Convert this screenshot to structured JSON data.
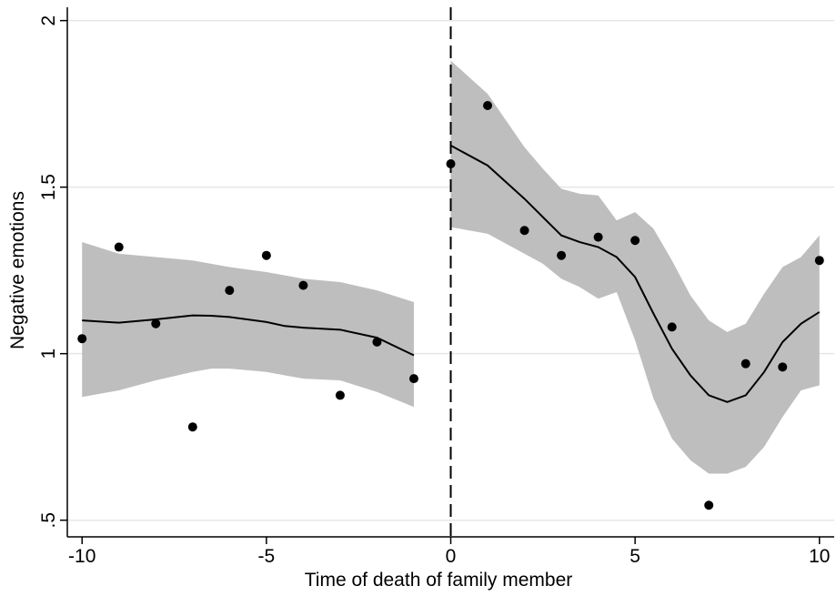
{
  "chart_data": {
    "type": "scatter",
    "title": "",
    "xlabel": "Time of death of family member",
    "ylabel": "Negative emotions",
    "xlim": [
      -10.4,
      10.4
    ],
    "ylim": [
      0.45,
      2.04
    ],
    "grid": "horizontal",
    "x_ticks": [
      -10,
      -5,
      0,
      5,
      10
    ],
    "x_tick_labels": [
      "-10",
      "-5",
      "0",
      "5",
      "10"
    ],
    "y_ticks": [
      0.5,
      1,
      1.5,
      2
    ],
    "y_tick_labels": [
      ".5",
      "1",
      "1.5",
      "2"
    ],
    "vertical_reference_line": {
      "x": 0,
      "style": "dashed"
    },
    "colors": {
      "points": "#000000",
      "fit_line": "#000000",
      "confidence_band": "#bebebe",
      "grid": "#e6e6e6"
    },
    "scatter_points": [
      {
        "x": -10,
        "y": 1.045
      },
      {
        "x": -9,
        "y": 1.32
      },
      {
        "x": -8,
        "y": 1.09
      },
      {
        "x": -7,
        "y": 0.78
      },
      {
        "x": -6,
        "y": 1.19
      },
      {
        "x": -5,
        "y": 1.295
      },
      {
        "x": -4,
        "y": 1.205
      },
      {
        "x": -3,
        "y": 0.875
      },
      {
        "x": -2,
        "y": 1.035
      },
      {
        "x": -1,
        "y": 0.925
      },
      {
        "x": 0,
        "y": 1.57
      },
      {
        "x": 1,
        "y": 1.745
      },
      {
        "x": 2,
        "y": 1.37
      },
      {
        "x": 3,
        "y": 1.295
      },
      {
        "x": 4,
        "y": 1.35
      },
      {
        "x": 5,
        "y": 1.34
      },
      {
        "x": 6,
        "y": 1.08
      },
      {
        "x": 7,
        "y": 0.545
      },
      {
        "x": 8,
        "y": 0.97
      },
      {
        "x": 9,
        "y": 0.96
      },
      {
        "x": 10,
        "y": 1.28
      }
    ],
    "fit_segments": [
      {
        "x": [
          -10,
          -9,
          -8,
          -7,
          -6.5,
          -6,
          -5,
          -4.5,
          -4,
          -3,
          -2,
          -1
        ],
        "fit": [
          1.1,
          1.093,
          1.103,
          1.115,
          1.114,
          1.11,
          1.095,
          1.083,
          1.078,
          1.072,
          1.048,
          0.995
        ],
        "lower": [
          0.87,
          0.89,
          0.92,
          0.945,
          0.955,
          0.955,
          0.945,
          0.935,
          0.925,
          0.92,
          0.885,
          0.84
        ],
        "upper": [
          1.335,
          1.3,
          1.29,
          1.28,
          1.27,
          1.26,
          1.245,
          1.235,
          1.225,
          1.215,
          1.19,
          1.155
        ]
      },
      {
        "x": [
          0,
          1,
          2,
          2.5,
          3,
          3.5,
          4,
          4.5,
          5,
          5.5,
          6,
          6.5,
          7,
          7.5,
          8,
          8.5,
          9,
          9.5,
          10
        ],
        "fit": [
          1.625,
          1.565,
          1.465,
          1.41,
          1.355,
          1.335,
          1.32,
          1.29,
          1.23,
          1.12,
          1.015,
          0.935,
          0.875,
          0.855,
          0.875,
          0.945,
          1.035,
          1.09,
          1.125
        ],
        "lower": [
          1.38,
          1.36,
          1.3,
          1.27,
          1.225,
          1.2,
          1.165,
          1.185,
          1.04,
          0.865,
          0.745,
          0.68,
          0.64,
          0.64,
          0.66,
          0.72,
          0.81,
          0.89,
          0.905
        ],
        "upper": [
          1.88,
          1.78,
          1.62,
          1.555,
          1.495,
          1.48,
          1.475,
          1.4,
          1.425,
          1.375,
          1.28,
          1.175,
          1.1,
          1.065,
          1.09,
          1.18,
          1.26,
          1.29,
          1.355
        ]
      }
    ]
  }
}
